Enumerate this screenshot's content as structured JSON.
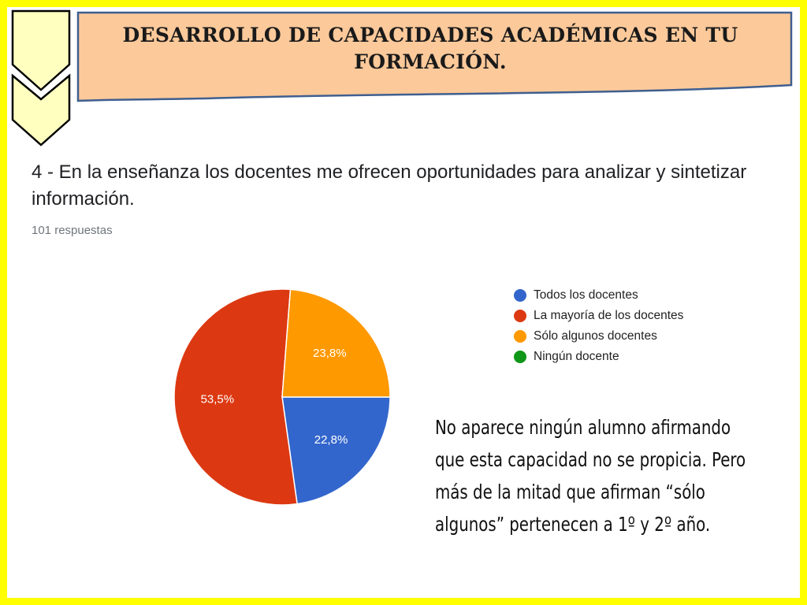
{
  "header": {
    "title": "DESARROLLO DE CAPACIDADES ACADÉMICAS EN TU FORMACIÓN."
  },
  "question": {
    "text": "4 - En la enseñanza los docentes me ofrecen oportunidades para analizar y sintetizar información.",
    "responses": "101 respuestas"
  },
  "colors": {
    "frame": "#ffff00",
    "banner_fill": "#fcc99a",
    "banner_stroke": "#3f5f8f",
    "chevron_fill": "#ffffc0"
  },
  "chart_data": {
    "type": "pie",
    "title": "",
    "categories": [
      "Todos los docentes",
      "La mayoría de los docentes",
      "Sólo algunos docentes",
      "Ningún docente"
    ],
    "values": [
      22.8,
      53.5,
      23.8,
      0
    ],
    "labels": [
      "22,8%",
      "53,5%",
      "23,8%",
      ""
    ],
    "colors": [
      "#3366cc",
      "#dc3912",
      "#ff9900",
      "#109618"
    ],
    "legend_position": "right"
  },
  "note": {
    "text": "No aparece ningún alumno afirmando que esta capacidad no se propicia. Pero más de la mitad que afirman “sólo algunos” pertenecen a 1º y 2º año."
  }
}
